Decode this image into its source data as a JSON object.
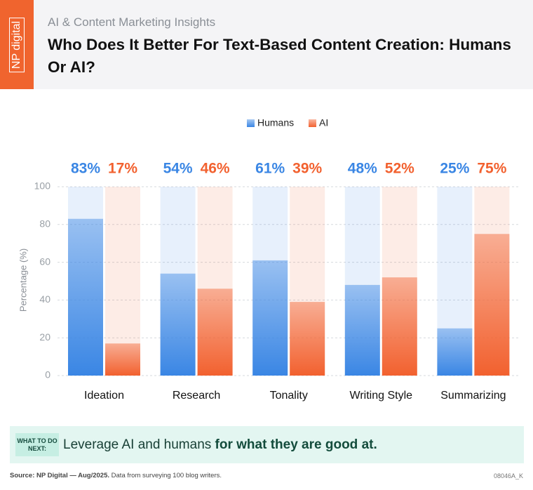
{
  "header": {
    "logo": "NP digital",
    "subtitle": "AI & Content Marketing Insights",
    "title": "Who Does It Better For Text-Based Content Creation: Humans Or AI?"
  },
  "chart_data": {
    "type": "bar",
    "categories": [
      "Ideation",
      "Research",
      "Tonality",
      "Writing Style",
      "Summarizing"
    ],
    "series": [
      {
        "name": "Humans",
        "color": "#3a86e4",
        "values": [
          83,
          54,
          61,
          48,
          25
        ],
        "value_labels": [
          "83%",
          "54%",
          "61%",
          "48%",
          "25%"
        ]
      },
      {
        "name": "AI",
        "color": "#f2612f",
        "values": [
          17,
          46,
          39,
          52,
          75
        ],
        "value_labels": [
          "17%",
          "46%",
          "39%",
          "52%",
          "75%"
        ]
      }
    ],
    "y_label": "Percentage (%)",
    "ylim": [
      0,
      100
    ],
    "yticks": [
      0,
      20,
      40,
      60,
      80,
      100
    ],
    "grid": true,
    "legend": "top"
  },
  "callout": {
    "label": "WHAT TO DO NEXT:",
    "text": "Leverage AI and humans ",
    "emphasis": "for what they are good at."
  },
  "footer": {
    "source": "Source: NP Digital — Aug/2025.",
    "note": "Data from surveying 100 blog writers.",
    "code": "08046A_K"
  }
}
